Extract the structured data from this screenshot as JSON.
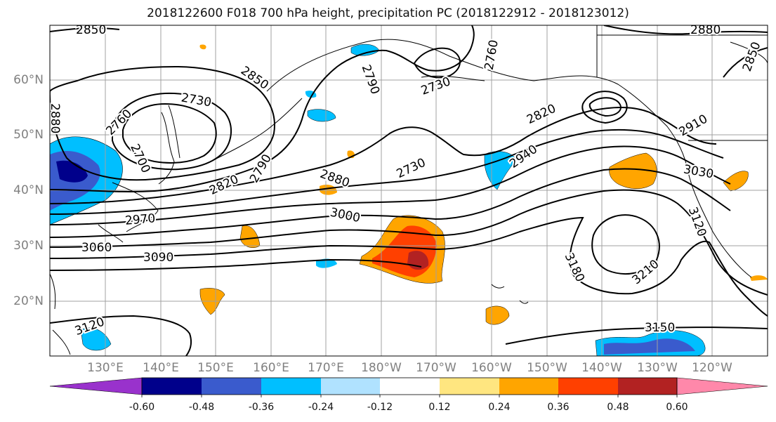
{
  "title": "2018122600 F018 700 hPa height, precipitation PC (2018122912 - 2018123012)",
  "lat_labels": [
    "60°N",
    "50°N",
    "40°N",
    "30°N",
    "20°N"
  ],
  "lon_labels": [
    "130°E",
    "140°E",
    "150°E",
    "160°E",
    "170°E",
    "180°W",
    "170°W",
    "160°W",
    "150°W",
    "140°W",
    "130°W",
    "120°W"
  ],
  "contour_labels": [
    "2850",
    "2880",
    "2850",
    "2760",
    "2730",
    "2790",
    "2730",
    "2760",
    "2850",
    "2880",
    "2760",
    "2700",
    "2820",
    "2790",
    "2820",
    "2730",
    "2910",
    "2880",
    "2940",
    "3030",
    "2970",
    "3000",
    "3120",
    "3060",
    "3090",
    "3180",
    "3210",
    "3120",
    "3150"
  ],
  "colorbar": {
    "colors": [
      "#9932cc",
      "#00008b",
      "#3a5bcd",
      "#00bfff",
      "#b0e2ff",
      "#ffffff",
      "#ffe680",
      "#ffa500",
      "#ff4000",
      "#b22222",
      "#ff88aa"
    ],
    "tick_labels": [
      "-0.60",
      "-0.48",
      "-0.36",
      "-0.24",
      "-0.12",
      "0.12",
      "0.24",
      "0.36",
      "0.48",
      "0.60"
    ]
  },
  "colors": {
    "contour": "#000000",
    "grid": "#a0a0a0",
    "axis_label": "#808080"
  }
}
